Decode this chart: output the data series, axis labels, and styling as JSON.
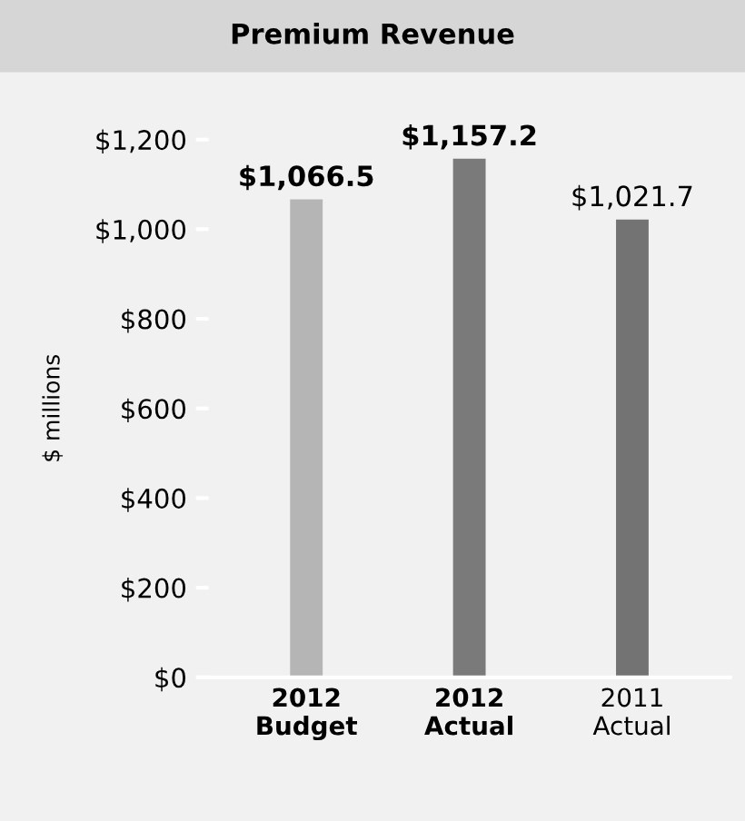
{
  "chart_data": {
    "type": "bar",
    "title": "Premium Revenue",
    "ylabel": "$ millions",
    "categories": [
      "2012\nBudget",
      "2012\nActual",
      "2011\nActual"
    ],
    "values": [
      1066.5,
      1157.2,
      1021.7
    ],
    "colors": [
      "#b5b5b5",
      "#7a7a7a",
      "#737373"
    ],
    "value_labels": [
      "$1,066.5",
      "$1,157.2",
      "$1,021.7"
    ],
    "ylim": [
      0,
      1200
    ],
    "yticks": [
      {
        "value": 0,
        "label": "$0"
      },
      {
        "value": 200,
        "label": "$200"
      },
      {
        "value": 400,
        "label": "$400"
      },
      {
        "value": 600,
        "label": "$600"
      },
      {
        "value": 800,
        "label": "$800"
      },
      {
        "value": 1000,
        "label": "$1,000"
      },
      {
        "value": 1200,
        "label": "$1,200"
      }
    ],
    "grid": false,
    "legend": false
  }
}
